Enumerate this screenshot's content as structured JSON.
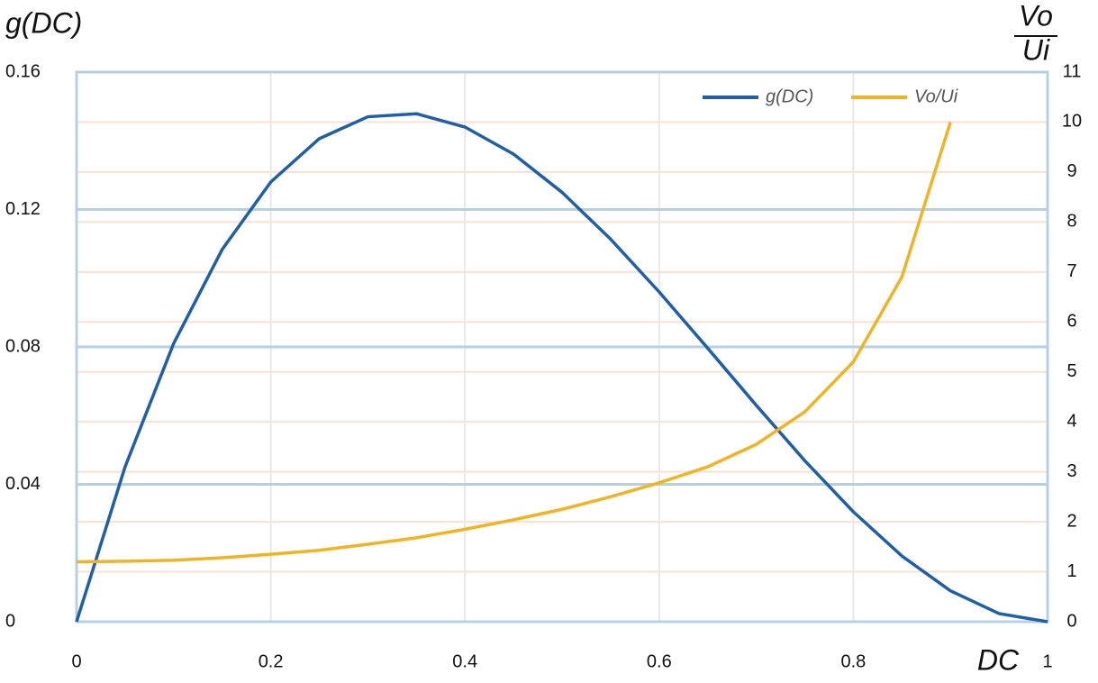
{
  "chart_data": {
    "type": "line",
    "ylabel": "g(DC)",
    "y2label": {
      "top": "Vo",
      "bottom": "Ui"
    },
    "xlabel": "DC",
    "x": [
      0,
      0.05,
      0.1,
      0.15,
      0.2,
      0.25,
      0.3,
      0.35,
      0.4,
      0.45,
      0.5,
      0.55,
      0.6,
      0.65,
      0.7,
      0.75,
      0.8,
      0.85,
      0.9,
      0.95,
      1
    ],
    "series": [
      {
        "name": "g(DC)",
        "color": "#1f5fa8",
        "values": [
          0,
          0.045125,
          0.081,
          0.108375,
          0.128,
          0.140625,
          0.147,
          0.147875,
          0.144,
          0.136125,
          0.125,
          0.111375,
          0.096,
          0.079625,
          0.063,
          0.046875,
          0.032,
          0.019125,
          0.009,
          0.002375,
          0
        ]
      },
      {
        "name": "Vo/Ui",
        "color": "#f0b323",
        "axis": "y2",
        "values": [
          1.2,
          1.21,
          1.23,
          1.28,
          1.35,
          1.43,
          1.55,
          1.68,
          1.85,
          2.04,
          2.25,
          2.5,
          2.78,
          3.1,
          3.55,
          4.2,
          5.2,
          6.9,
          10,
          null,
          null
        ]
      }
    ],
    "xlim": [
      0,
      1
    ],
    "xticks": [
      0,
      0.2,
      0.4,
      0.6,
      0.8,
      1
    ],
    "ylim": [
      0,
      0.16
    ],
    "yticks": [
      0,
      0.04,
      0.08,
      0.12,
      0.16
    ],
    "y2lim": [
      0,
      11
    ],
    "y2ticks": [
      0,
      1,
      2,
      3,
      4,
      5,
      6,
      7,
      8,
      9,
      10,
      11
    ],
    "grid": true,
    "legend": "top-right"
  }
}
